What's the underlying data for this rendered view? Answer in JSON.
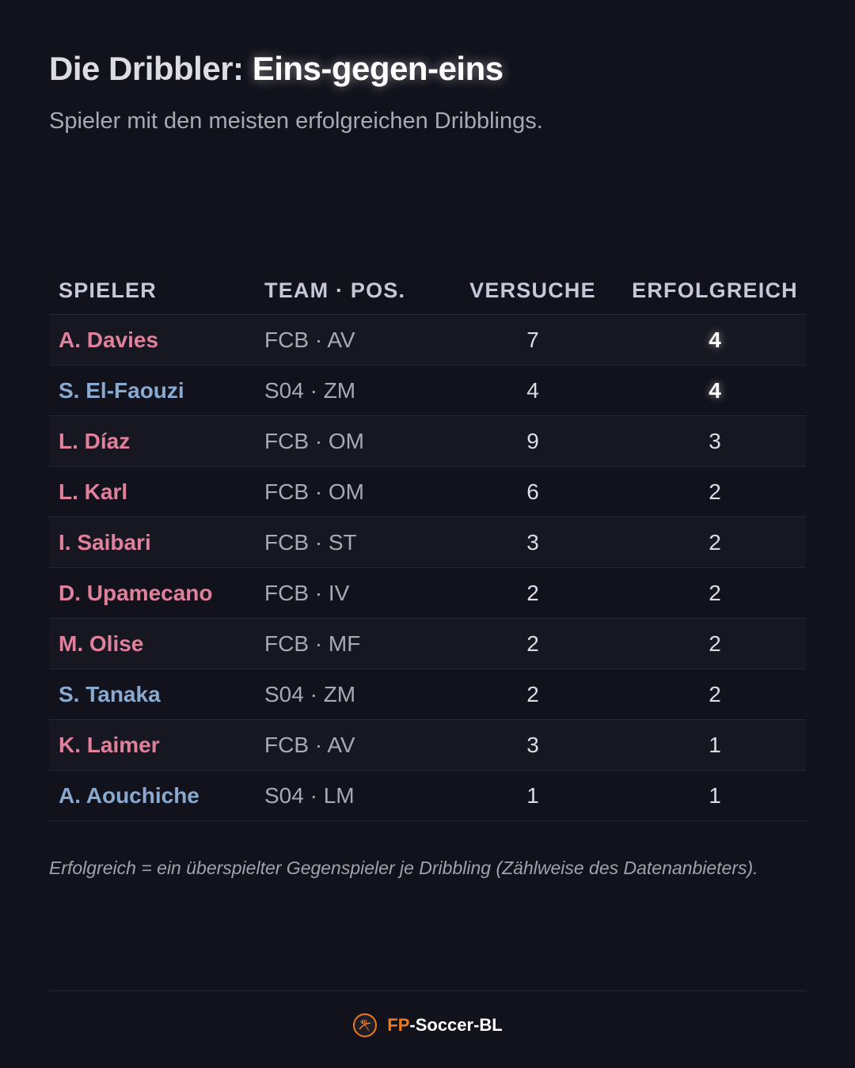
{
  "header": {
    "title_prefix": "Die Dribbler:",
    "title_highlight": "Eins-gegen-eins",
    "subtitle": "Spieler mit den meisten erfolgreichen Dribblings."
  },
  "table": {
    "columns": [
      "SPIELER",
      "TEAM · POS.",
      "VERSUCHE",
      "ERFOLGREICH"
    ],
    "rows": [
      {
        "player": "A. Davies",
        "club": "FCB",
        "team_pos": "FCB · AV",
        "attempts": "7",
        "successful": "4",
        "best": true
      },
      {
        "player": "S. El-Faouzi",
        "club": "S04",
        "team_pos": "S04 · ZM",
        "attempts": "4",
        "successful": "4",
        "best": true
      },
      {
        "player": "L. Díaz",
        "club": "FCB",
        "team_pos": "FCB · OM",
        "attempts": "9",
        "successful": "3",
        "best": false
      },
      {
        "player": "L. Karl",
        "club": "FCB",
        "team_pos": "FCB · OM",
        "attempts": "6",
        "successful": "2",
        "best": false
      },
      {
        "player": "I. Saibari",
        "club": "FCB",
        "team_pos": "FCB · ST",
        "attempts": "3",
        "successful": "2",
        "best": false
      },
      {
        "player": "D. Upamecano",
        "club": "FCB",
        "team_pos": "FCB · IV",
        "attempts": "2",
        "successful": "2",
        "best": false
      },
      {
        "player": "M. Olise",
        "club": "FCB",
        "team_pos": "FCB · MF",
        "attempts": "2",
        "successful": "2",
        "best": false
      },
      {
        "player": "S. Tanaka",
        "club": "S04",
        "team_pos": "S04 · ZM",
        "attempts": "2",
        "successful": "2",
        "best": false
      },
      {
        "player": "K. Laimer",
        "club": "FCB",
        "team_pos": "FCB · AV",
        "attempts": "3",
        "successful": "1",
        "best": false
      },
      {
        "player": "A. Aouchiche",
        "club": "S04",
        "team_pos": "S04 · LM",
        "attempts": "1",
        "successful": "1",
        "best": false
      }
    ]
  },
  "footnote": "Erfolgreich = ein überspielter Gegenspieler je Dribbling (Zählweise des Datenanbieters).",
  "brand": {
    "accent": "FP",
    "rest": "-Soccer-BL",
    "logo_icon": "soccer-ball-logo-icon",
    "logo_text": "BL"
  },
  "colors": {
    "background": "#12121c",
    "club_fcb": "#e0819c",
    "club_s04": "#8aa9cf",
    "brand_accent": "#f07a1a"
  }
}
